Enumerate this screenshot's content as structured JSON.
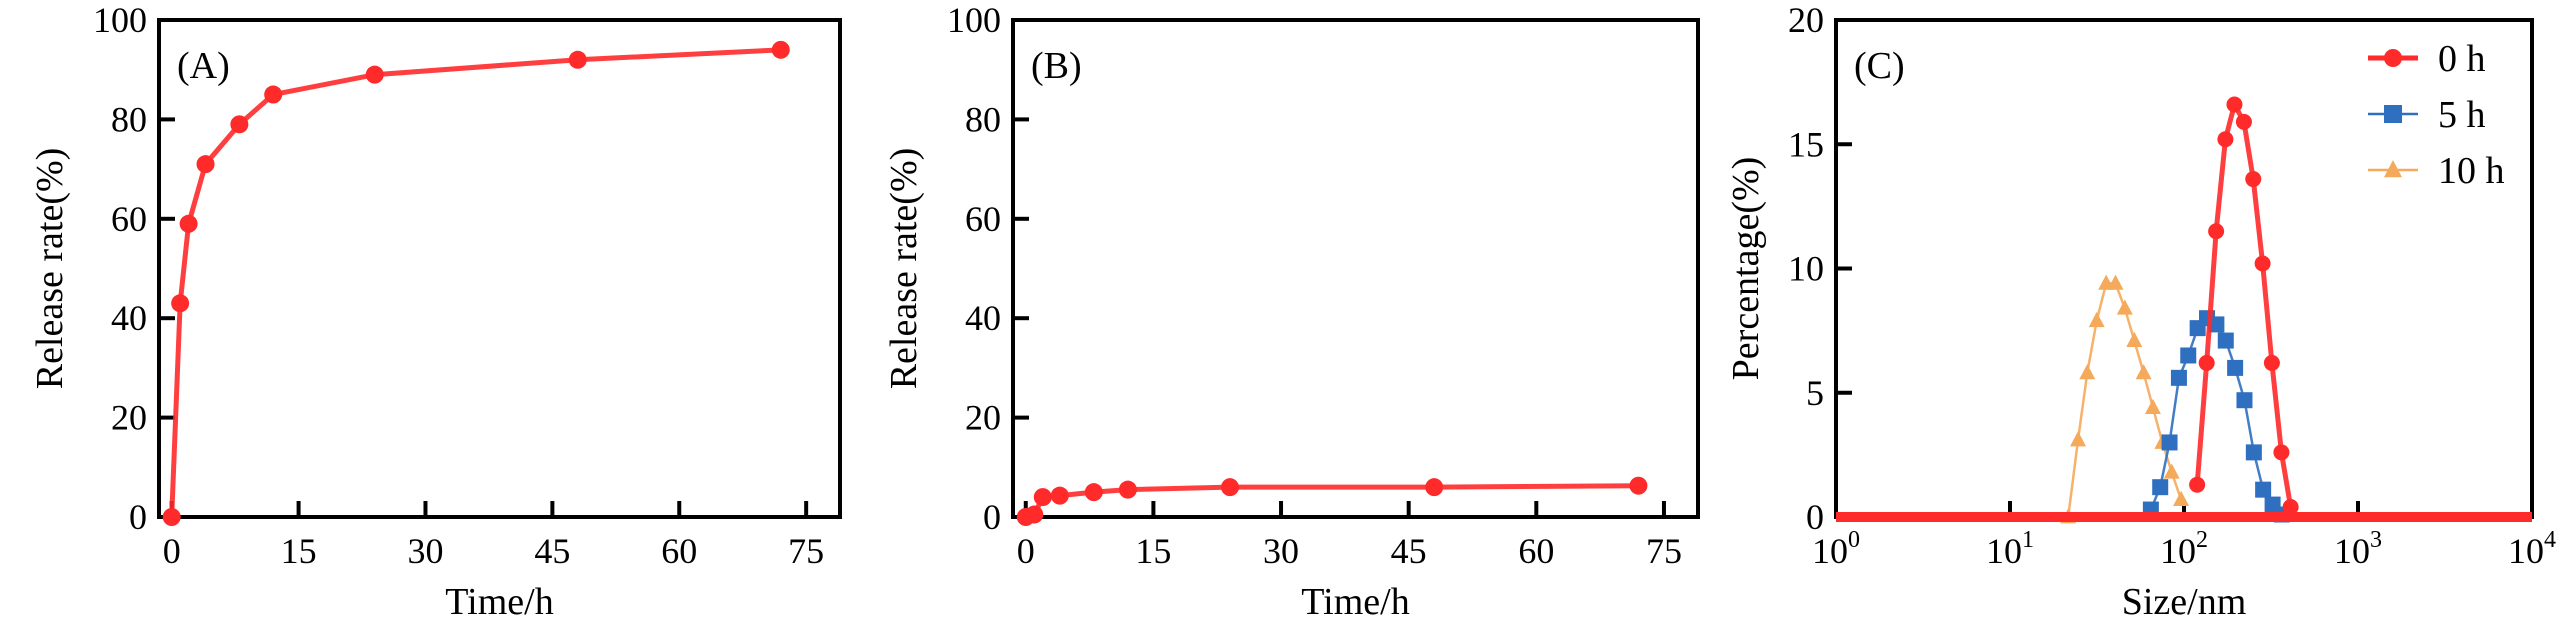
{
  "chart_data": [
    {
      "type": "line",
      "panel_label": "(A)",
      "xlabel": "Time/h",
      "ylabel": "Release rate(%)",
      "xlim": [
        -1.5,
        79
      ],
      "ylim": [
        0,
        100
      ],
      "xticks": [
        0,
        15,
        30,
        45,
        60,
        75
      ],
      "yticks": [
        0,
        20,
        40,
        60,
        80,
        100
      ],
      "grid": false,
      "series": [
        {
          "name": "Release",
          "color": "#ff2a2a",
          "marker": "circle",
          "x": [
            0,
            1,
            2,
            4,
            8,
            12,
            24,
            48,
            72
          ],
          "y": [
            0,
            43,
            59,
            71,
            79,
            85,
            89,
            92,
            94
          ]
        }
      ]
    },
    {
      "type": "line",
      "panel_label": "(B)",
      "xlabel": "Time/h",
      "ylabel": "Release rate(%)",
      "xlim": [
        -1.5,
        79
      ],
      "ylim": [
        0,
        100
      ],
      "xticks": [
        0,
        15,
        30,
        45,
        60,
        75
      ],
      "yticks": [
        0,
        20,
        40,
        60,
        80,
        100
      ],
      "grid": false,
      "series": [
        {
          "name": "Release",
          "color": "#ff2a2a",
          "marker": "circle",
          "x": [
            0,
            1,
            2,
            4,
            8,
            12,
            24,
            48,
            72
          ],
          "y": [
            0,
            0.5,
            4,
            4.3,
            5,
            5.5,
            6,
            6,
            6.3
          ]
        }
      ]
    },
    {
      "type": "line",
      "panel_label": "(C)",
      "xlabel": "Size/nm",
      "ylabel": "Percentage(%)",
      "xscale": "log",
      "xlim": [
        1,
        10000
      ],
      "ylim": [
        0,
        20
      ],
      "xticks": [
        1,
        10,
        100,
        1000,
        10000
      ],
      "xtick_labels": [
        [
          "10",
          "0"
        ],
        [
          "10",
          "1"
        ],
        [
          "10",
          "2"
        ],
        [
          "10",
          "3"
        ],
        [
          "10",
          "4"
        ]
      ],
      "yticks": [
        0,
        5,
        10,
        15,
        20
      ],
      "grid": false,
      "legend": "top-right",
      "series": [
        {
          "name": "0 h",
          "color": "#ff2a2a",
          "marker": "circle",
          "x": [
            119,
            135,
            153,
            173,
            195,
            221,
            250,
            283,
            320,
            363,
            410
          ],
          "y": [
            1.3,
            6.2,
            11.5,
            15.2,
            16.6,
            15.9,
            13.6,
            10.2,
            6.2,
            2.6,
            0.4
          ]
        },
        {
          "name": "5 h",
          "color": "#2f6fbf",
          "marker": "square",
          "x": [
            64.5,
            73,
            82.6,
            93.5,
            105.8,
            119.8,
            135.6,
            153.5,
            173.8,
            196.7,
            222.6,
            252,
            285,
            323,
            365
          ],
          "y": [
            0.3,
            1.2,
            3.0,
            5.6,
            6.5,
            7.6,
            8.0,
            7.75,
            7.1,
            6.0,
            4.7,
            2.6,
            1.1,
            0.5,
            0.1
          ]
        },
        {
          "name": "10 h",
          "color": "#f5a95a",
          "marker": "triangle",
          "x": [
            21.6,
            24.6,
            27.8,
            31.5,
            35.7,
            40.4,
            45.7,
            51.8,
            58.6,
            66.3,
            75.1,
            85,
            96.2
          ],
          "y": [
            0,
            3.1,
            5.8,
            7.9,
            9.4,
            9.4,
            8.4,
            7.1,
            5.8,
            4.4,
            3.0,
            1.8,
            0.7
          ]
        }
      ]
    }
  ]
}
